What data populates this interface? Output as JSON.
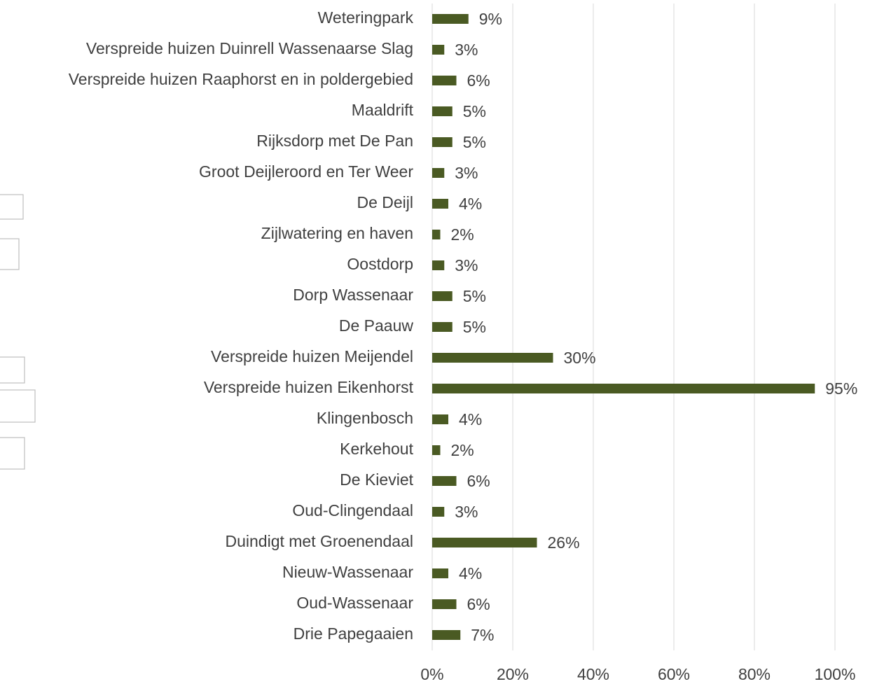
{
  "chart_data": {
    "type": "bar",
    "orientation": "horizontal",
    "categories": [
      "Weteringpark",
      "Verspreide huizen Duinrell Wassenaarse Slag",
      "Verspreide huizen Raaphorst en in poldergebied",
      "Maaldrift",
      "Rijksdorp met De Pan",
      "Groot Deijleroord en Ter Weer",
      "De Deijl",
      "Zijlwatering en haven",
      "Oostdorp",
      "Dorp Wassenaar",
      "De Paauw",
      "Verspreide huizen Meijendel",
      "Verspreide huizen Eikenhorst",
      "Klingenbosch",
      "Kerkehout",
      "De Kieviet",
      "Oud-Clingendaal",
      "Duindigt met Groenendaal",
      "Nieuw-Wassenaar",
      "Oud-Wassenaar",
      "Drie Papegaaien"
    ],
    "values": [
      9,
      3,
      6,
      5,
      5,
      3,
      4,
      2,
      3,
      5,
      5,
      30,
      95,
      4,
      2,
      6,
      3,
      26,
      4,
      6,
      7
    ],
    "value_labels": [
      "9%",
      "3%",
      "6%",
      "5%",
      "5%",
      "3%",
      "4%",
      "2%",
      "3%",
      "5%",
      "5%",
      "30%",
      "95%",
      "4%",
      "2%",
      "6%",
      "3%",
      "26%",
      "4%",
      "6%",
      "7%"
    ],
    "color": "#4a5a23",
    "xlim": [
      0,
      100
    ],
    "xticks": [
      {
        "value": 0,
        "label": "0%"
      },
      {
        "value": 20,
        "label": "20%"
      },
      {
        "value": 40,
        "label": "40%"
      },
      {
        "value": 60,
        "label": "60%"
      },
      {
        "value": 80,
        "label": "80%"
      },
      {
        "value": 100,
        "label": "100%"
      }
    ],
    "grid": true
  }
}
